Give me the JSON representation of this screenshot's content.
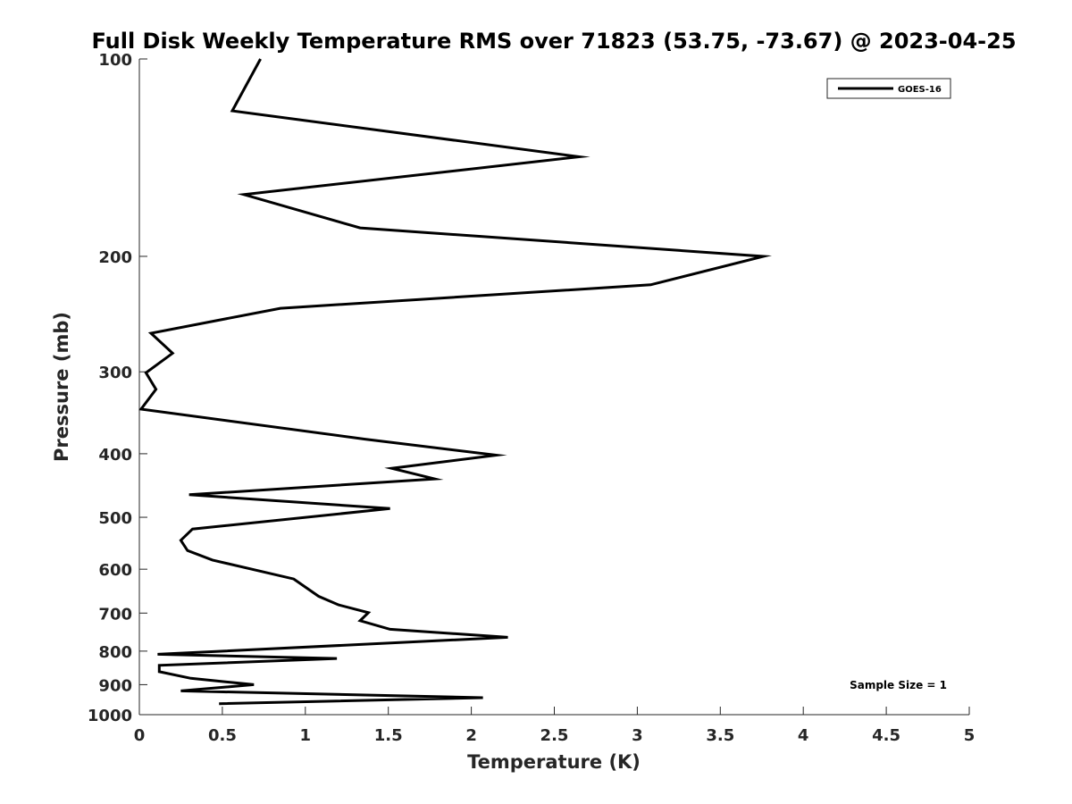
{
  "chart_data": {
    "type": "line",
    "title": "Full Disk Weekly Temperature RMS over 71823 (53.75, -73.67) @ 2023-04-25",
    "xlabel": "Temperature (K)",
    "ylabel": "Pressure (mb)",
    "xlim": [
      0,
      5
    ],
    "ylim": [
      100,
      1000
    ],
    "y_scale": "log",
    "y_reversed": true,
    "x_ticks": [
      0,
      0.5,
      1,
      1.5,
      2,
      2.5,
      3,
      3.5,
      4,
      4.5,
      5
    ],
    "x_tick_labels": [
      "0",
      "0.5",
      "1",
      "1.5",
      "2",
      "2.5",
      "3",
      "3.5",
      "4",
      "4.5",
      "5"
    ],
    "y_ticks": [
      100,
      200,
      300,
      400,
      500,
      600,
      700,
      800,
      900,
      1000
    ],
    "y_tick_labels": [
      "100",
      "200",
      "300",
      "400",
      "500",
      "600",
      "700",
      "800",
      "900",
      "1000"
    ],
    "grid": false,
    "legend_position": "top-right",
    "annotation": "Sample Size = 1",
    "series": [
      {
        "name": "GOES-16",
        "color": "#000000",
        "points": [
          {
            "x": 0.73,
            "p": 100
          },
          {
            "x": 0.56,
            "p": 120
          },
          {
            "x": 2.65,
            "p": 141
          },
          {
            "x": 0.63,
            "p": 161
          },
          {
            "x": 1.33,
            "p": 181
          },
          {
            "x": 3.76,
            "p": 200
          },
          {
            "x": 3.08,
            "p": 221
          },
          {
            "x": 0.85,
            "p": 240
          },
          {
            "x": 0.07,
            "p": 262
          },
          {
            "x": 0.2,
            "p": 281
          },
          {
            "x": 0.04,
            "p": 301
          },
          {
            "x": 0.1,
            "p": 319
          },
          {
            "x": 0.01,
            "p": 342
          },
          {
            "x": 1.36,
            "p": 380
          },
          {
            "x": 2.15,
            "p": 402
          },
          {
            "x": 1.52,
            "p": 421
          },
          {
            "x": 1.78,
            "p": 437
          },
          {
            "x": 0.3,
            "p": 462
          },
          {
            "x": 1.51,
            "p": 485
          },
          {
            "x": 0.32,
            "p": 521
          },
          {
            "x": 0.25,
            "p": 542
          },
          {
            "x": 0.29,
            "p": 562
          },
          {
            "x": 0.44,
            "p": 581
          },
          {
            "x": 0.93,
            "p": 621
          },
          {
            "x": 1.08,
            "p": 660
          },
          {
            "x": 1.2,
            "p": 680
          },
          {
            "x": 1.38,
            "p": 699
          },
          {
            "x": 1.33,
            "p": 719
          },
          {
            "x": 1.51,
            "p": 741
          },
          {
            "x": 2.22,
            "p": 762
          },
          {
            "x": 0.11,
            "p": 809
          },
          {
            "x": 1.19,
            "p": 821
          },
          {
            "x": 0.12,
            "p": 841
          },
          {
            "x": 0.12,
            "p": 860
          },
          {
            "x": 0.31,
            "p": 880
          },
          {
            "x": 0.69,
            "p": 900
          },
          {
            "x": 0.25,
            "p": 920
          },
          {
            "x": 2.07,
            "p": 942
          },
          {
            "x": 0.48,
            "p": 962
          }
        ]
      }
    ]
  }
}
